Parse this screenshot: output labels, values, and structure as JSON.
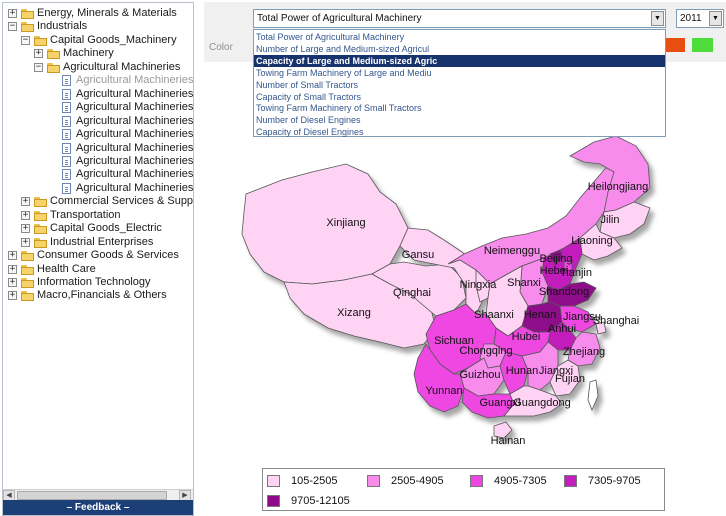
{
  "tree": {
    "items": [
      {
        "label": "Energy, Minerals & Materials",
        "expander": "+",
        "icon": "folder"
      },
      {
        "label": "Industrials",
        "expander": "−",
        "icon": "folder"
      },
      {
        "label": "Capital Goods_Machinery",
        "expander": "−",
        "icon": "folder"
      },
      {
        "label": "Machinery",
        "expander": "+",
        "icon": "folder"
      },
      {
        "label": "Agricultural Machineries",
        "expander": "−",
        "icon": "folder"
      },
      {
        "label": "Agricultural Machineries",
        "icon": "page",
        "dim": true
      },
      {
        "label": "Agricultural Machineries",
        "icon": "page"
      },
      {
        "label": "Agricultural Machineries",
        "icon": "page"
      },
      {
        "label": "Agricultural Machineries",
        "icon": "page"
      },
      {
        "label": "Agricultural Machineries",
        "icon": "page"
      },
      {
        "label": "Agricultural Machineries",
        "icon": "page"
      },
      {
        "label": "Agricultural Machineries",
        "icon": "page"
      },
      {
        "label": "Agricultural Machineries",
        "icon": "page"
      },
      {
        "label": "Agricultural Machineries",
        "icon": "page"
      },
      {
        "label": "Commercial Services & Supplies",
        "expander": "+",
        "icon": "folder"
      },
      {
        "label": "Transportation",
        "expander": "+",
        "icon": "folder"
      },
      {
        "label": "Capital Goods_Electric",
        "expander": "+",
        "icon": "folder"
      },
      {
        "label": "Industrial Enterprises",
        "expander": "+",
        "icon": "folder"
      },
      {
        "label": "Consumer Goods & Services",
        "expander": "+",
        "icon": "folder"
      },
      {
        "label": "Health Care",
        "expander": "+",
        "icon": "folder"
      },
      {
        "label": "Information Technology",
        "expander": "+",
        "icon": "folder"
      },
      {
        "label": "Macro,Financials & Others",
        "expander": "+",
        "icon": "folder"
      }
    ],
    "feedback_label": "– Feedback –"
  },
  "toolbar": {
    "indicator_value": "Total Power of Agricultural Machinery",
    "year_value": "2011",
    "color_label": "Color",
    "swatch_colors": [
      "#e84e0f",
      "#4ddc3a"
    ]
  },
  "dropdown": {
    "options": [
      {
        "label": "Total Power of Agricultural Machinery"
      },
      {
        "label": "Number of Large and Medium-sized Agricul"
      },
      {
        "label": "Capacity of Large and Medium-sized Agric",
        "selected": true
      },
      {
        "label": "Towing Farm Machinery of Large and Mediu"
      },
      {
        "label": "Number of Small Tractors"
      },
      {
        "label": "Capacity of Small Tractors"
      },
      {
        "label": "Towing Farm Machinery of Small Tractors"
      },
      {
        "label": "Number of Diesel Engines"
      },
      {
        "label": "Capacity of Diesel Engines"
      }
    ]
  },
  "map": {
    "provinces": [
      "Heilongjiang",
      "Jilin",
      "Liaoning",
      "Xinjiang",
      "Neimenggu",
      "Beijing",
      "Tianjin",
      "Hebei",
      "Gansu",
      "Ningxia",
      "Shanxi",
      "Shandong",
      "Qinghai",
      "Xizang",
      "Shaanxi",
      "Henan",
      "Jiangsu",
      "Anhui",
      "Shanghai",
      "Sichuan",
      "Chongqing",
      "Hubei",
      "Zhejiang",
      "Guizhou",
      "Hunan",
      "Jiangxi",
      "Fujian",
      "Yunnan",
      "Guangxi",
      "Guangdong",
      "Hainan"
    ]
  },
  "legend": {
    "items": [
      {
        "label": "105-2505",
        "color": "#ffd3f4"
      },
      {
        "label": "2505-4905",
        "color": "#f78cec"
      },
      {
        "label": "4905-7305",
        "color": "#ee46e2"
      },
      {
        "label": "7305-9705",
        "color": "#c31fbd"
      },
      {
        "label": "9705-12105",
        "color": "#8e0a8a"
      }
    ]
  }
}
